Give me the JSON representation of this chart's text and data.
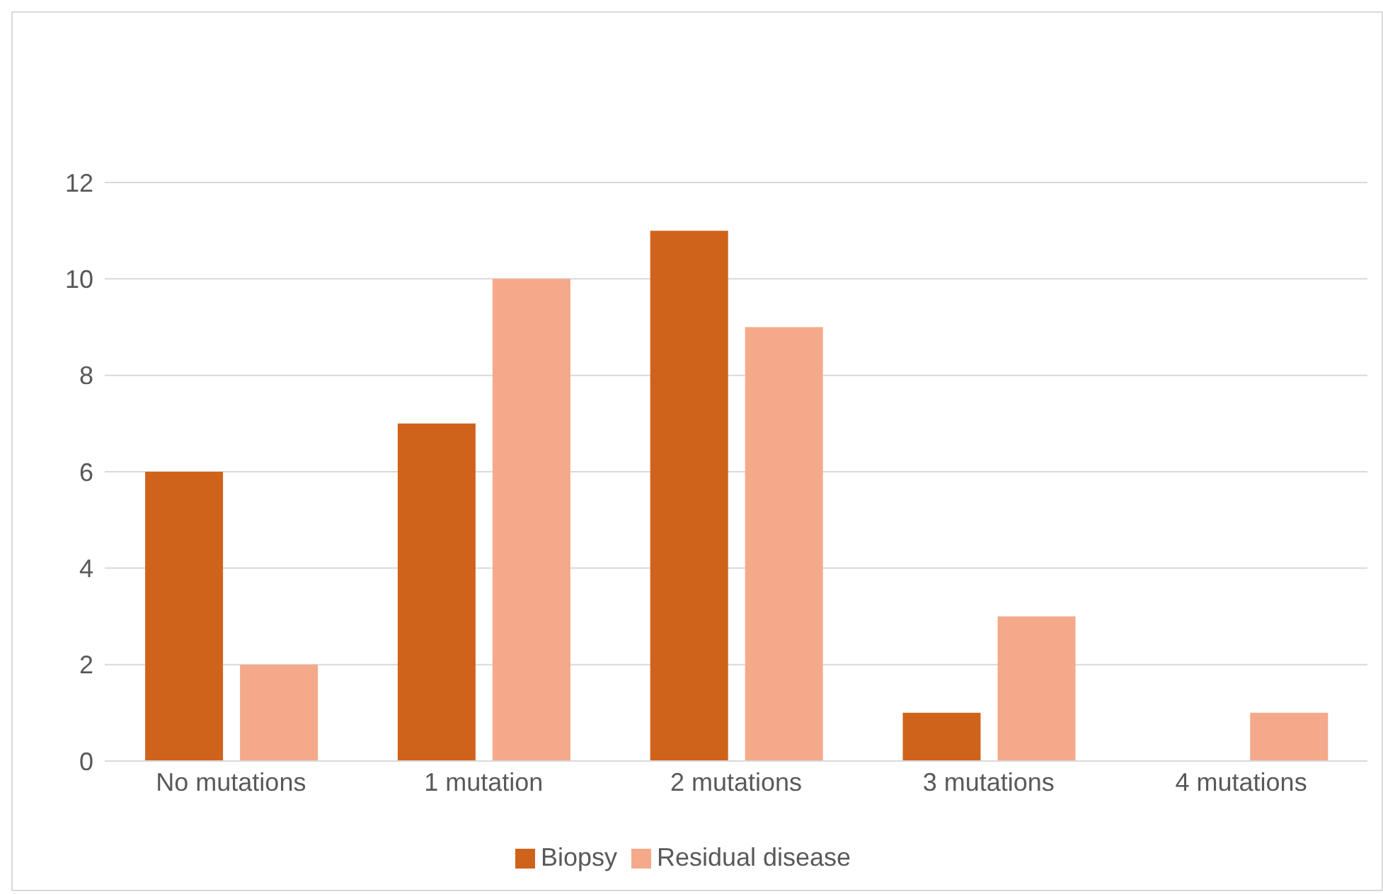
{
  "chart_data": {
    "type": "bar",
    "categories": [
      "No mutations",
      "1 mutation",
      "2 mutations",
      "3 mutations",
      "4 mutations"
    ],
    "series": [
      {
        "name": "Biopsy",
        "color": "#d0631c",
        "values": [
          6,
          7,
          11,
          1,
          0
        ]
      },
      {
        "name": "Residual disease",
        "color": "#f4a98a",
        "values": [
          2,
          10,
          9,
          3,
          1
        ]
      }
    ],
    "ylim": [
      0,
      12
    ],
    "yticks": [
      0,
      2,
      4,
      6,
      8,
      10,
      12
    ],
    "grid": "y",
    "legend": "bottom"
  }
}
